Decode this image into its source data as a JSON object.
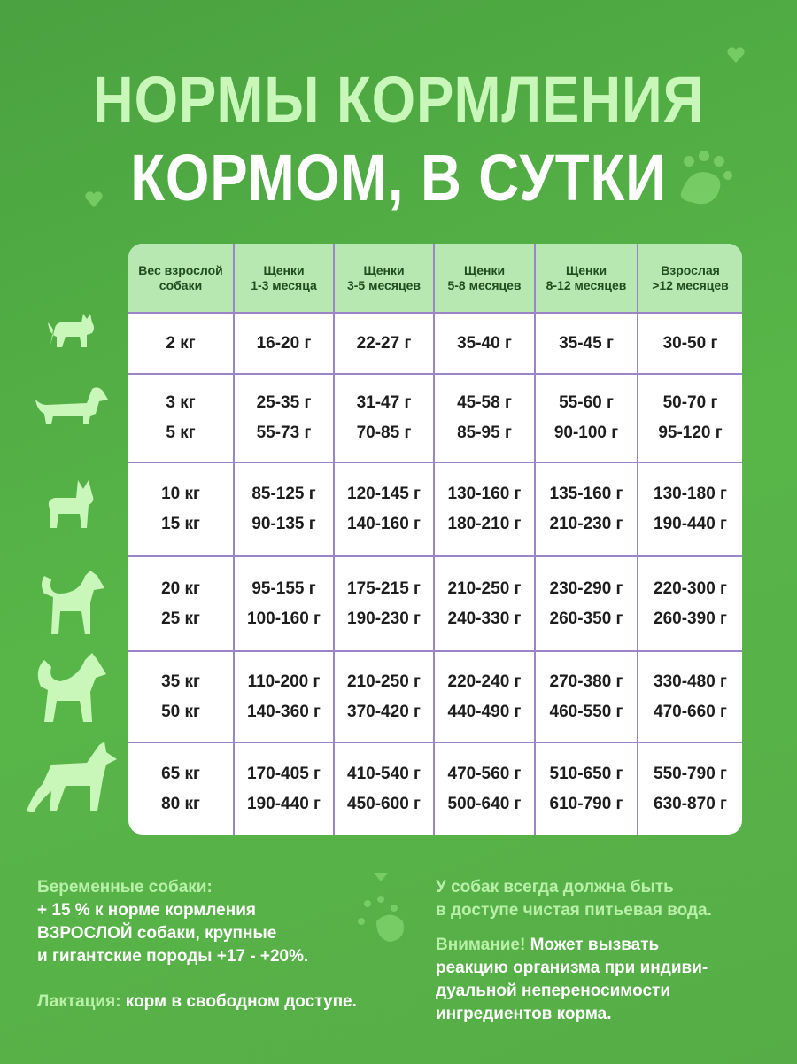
{
  "title": {
    "line1": "НОРМЫ КОРМЛЕНИЯ",
    "line2": "КОРМОМ, В СУТКИ"
  },
  "colors": {
    "background": "#55b146",
    "title": "#c9f7b9",
    "header_bg": "#b8e8b2",
    "grid": "#9c84c8"
  },
  "table": {
    "headers": [
      [
        "Вес взрослой",
        "собаки"
      ],
      [
        "Щенки",
        "1-3 месяца"
      ],
      [
        "Щенки",
        "3-5 месяцев"
      ],
      [
        "Щенки",
        "5-8 месяцев"
      ],
      [
        "Щенки",
        "8-12 месяцев"
      ],
      [
        "Взрослая",
        ">12 месяцев"
      ]
    ],
    "rows": [
      [
        [
          "2 кг"
        ],
        [
          "16-20 г"
        ],
        [
          "22-27 г"
        ],
        [
          "35-40 г"
        ],
        [
          "35-45 г"
        ],
        [
          "30-50 г"
        ]
      ],
      [
        [
          "3 кг",
          "5 кг"
        ],
        [
          "25-35 г",
          "55-73 г"
        ],
        [
          "31-47 г",
          "70-85 г"
        ],
        [
          "45-58 г",
          "85-95 г"
        ],
        [
          "55-60 г",
          "90-100 г"
        ],
        [
          "50-70 г",
          "95-120 г"
        ]
      ],
      [
        [
          "10 кг",
          "15 кг"
        ],
        [
          "85-125 г",
          "90-135 г"
        ],
        [
          "120-145 г",
          "140-160 г"
        ],
        [
          "130-160 г",
          "180-210 г"
        ],
        [
          "135-160 г",
          "210-230 г"
        ],
        [
          "130-180 г",
          "190-440 г"
        ]
      ],
      [
        [
          "20 кг",
          "25 кг"
        ],
        [
          "95-155 г",
          "100-160 г"
        ],
        [
          "175-215 г",
          "190-230 г"
        ],
        [
          "210-250 г",
          "240-330 г"
        ],
        [
          "230-290 г",
          "260-350 г"
        ],
        [
          "220-300 г",
          "260-390 г"
        ]
      ],
      [
        [
          "35 кг",
          "50 кг"
        ],
        [
          "110-200 г",
          "140-360 г"
        ],
        [
          "210-250 г",
          "370-420 г"
        ],
        [
          "220-240 г",
          "440-490 г"
        ],
        [
          "270-380 г",
          "460-550 г"
        ],
        [
          "330-480 г",
          "470-660 г"
        ]
      ],
      [
        [
          "65 кг",
          "80 кг"
        ],
        [
          "170-405 г",
          "190-440 г"
        ],
        [
          "410-540 г",
          "450-600 г"
        ],
        [
          "470-560 г",
          "500-640 г"
        ],
        [
          "510-650 г",
          "610-790 г"
        ],
        [
          "550-790 г",
          "630-870 г"
        ]
      ]
    ]
  },
  "notes": {
    "pregnant_label": "Беременные собаки:",
    "pregnant_lines": [
      "+ 15 % к норме кормления",
      "ВЗРОСЛОЙ собаки, крупные",
      "и гигантские породы +17 - +20%."
    ],
    "lactation_label": "Лактация:",
    "lactation_text": " корм в свободном доступе.",
    "water_lines": [
      "У собак всегда должна быть",
      "в доступе чистая питьевая вода."
    ],
    "warning_label": "Внимание!",
    "warning_lines": [
      " Может вызвать",
      "реакцию организма при индиви-",
      "дуальной непереносимости",
      "ингредиентов корма."
    ]
  }
}
